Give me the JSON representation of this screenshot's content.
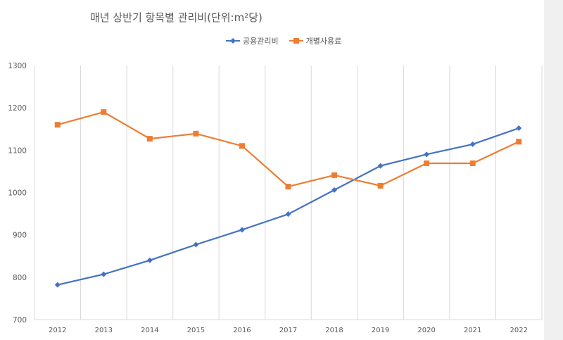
{
  "chart_data": {
    "type": "line",
    "title": "매년 상반기 항목별 관리비(단위:m²당)",
    "categories": [
      "2012",
      "2013",
      "2014",
      "2015",
      "2016",
      "2017",
      "2018",
      "2019",
      "2020",
      "2021",
      "2022"
    ],
    "series": [
      {
        "name": "공용관리비",
        "color": "#4472c4",
        "marker": "diamond",
        "values": [
          782,
          807,
          840,
          877,
          912,
          949,
          1006,
          1063,
          1090,
          1114,
          1152
        ]
      },
      {
        "name": "개별사용료",
        "color": "#ed7d31",
        "marker": "square",
        "values": [
          1160,
          1190,
          1127,
          1139,
          1110,
          1014,
          1041,
          1016,
          1069,
          1069,
          1120
        ]
      }
    ],
    "ylim": [
      700,
      1300
    ],
    "yticks": [
      "700",
      "800",
      "900",
      "1000",
      "1100",
      "1200",
      "1300"
    ],
    "xlabel": "",
    "ylabel": "",
    "grid": "vertical category separators",
    "legend": "top"
  }
}
